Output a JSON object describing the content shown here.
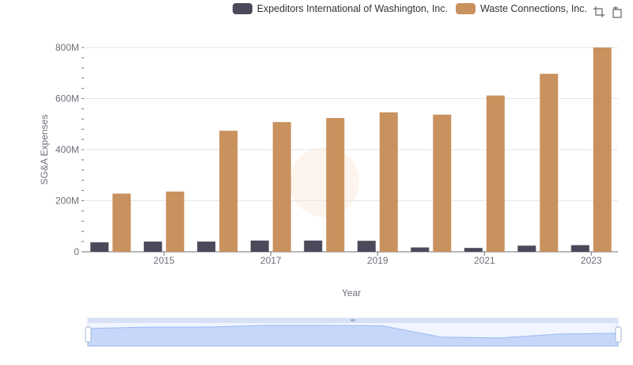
{
  "legend": {
    "items": [
      {
        "label": "Expeditors International of Washington, Inc.",
        "color": "#4a4a5a"
      },
      {
        "label": "Waste Connections, Inc.",
        "color": "#c9915e"
      }
    ]
  },
  "toolbox": {
    "zoom_icon": "zoom-icon",
    "restore_icon": "restore-icon"
  },
  "chart_data": {
    "type": "bar",
    "categories": [
      "2014",
      "2015",
      "2016",
      "2017",
      "2018",
      "2019",
      "2020",
      "2021",
      "2022",
      "2023"
    ],
    "x_tick_labels_shown": [
      "2015",
      "2017",
      "2019",
      "2021",
      "2023"
    ],
    "series": [
      {
        "name": "Expeditors International of Washington, Inc.",
        "color": "#4a4a5a",
        "values": [
          37,
          40,
          40,
          44,
          44,
          43,
          17,
          15,
          24,
          26
        ]
      },
      {
        "name": "Waste Connections, Inc.",
        "color": "#c9915e",
        "values": [
          228,
          236,
          474,
          508,
          524,
          546,
          537,
          612,
          697,
          800
        ]
      }
    ],
    "xlabel": "Year",
    "ylabel": "SG&A Expenses",
    "ylim": [
      0,
      800
    ],
    "y_ticks": [
      0,
      200,
      400,
      600,
      800
    ],
    "y_tick_labels": [
      "0",
      "200M",
      "400M",
      "600M",
      "800M"
    ],
    "grid": true,
    "legend_position": "top-right"
  }
}
